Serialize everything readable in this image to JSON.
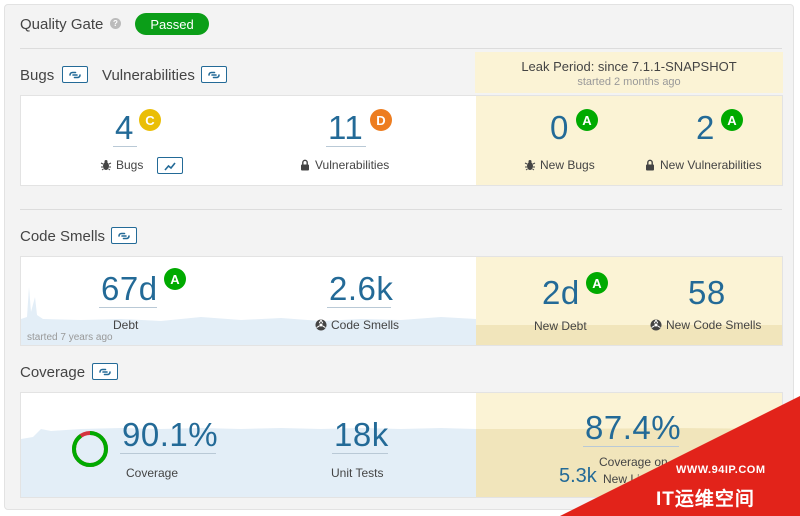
{
  "quality_gate": {
    "title": "Quality Gate",
    "help_icon": "?",
    "status": "Passed",
    "status_color": "#0b9e18"
  },
  "leak_period": {
    "title": "Leak Period: since 7.1.1-SNAPSHOT",
    "started": "started 2 months ago"
  },
  "sections": {
    "bugs": "Bugs",
    "vulnerabilities": "Vulnerabilities",
    "code_smells": "Code Smells",
    "coverage": "Coverage"
  },
  "bugs_vulns": {
    "bugs": {
      "value": "4",
      "rating": "C",
      "label": "Bugs"
    },
    "vulnerabilities": {
      "value": "11",
      "rating": "D",
      "label": "Vulnerabilities"
    },
    "new_bugs": {
      "value": "0",
      "rating": "A",
      "label": "New Bugs"
    },
    "new_vulnerabilities": {
      "value": "2",
      "rating": "A",
      "label": "New Vulnerabilities"
    }
  },
  "code_smells": {
    "debt": {
      "value": "67d",
      "rating": "A",
      "label": "Debt",
      "started": "started 7 years ago"
    },
    "smells": {
      "value": "2.6k",
      "label": "Code Smells"
    },
    "new_debt": {
      "value": "2d",
      "rating": "A",
      "label": "New Debt"
    },
    "new_smells": {
      "value": "58",
      "label": "New Code Smells"
    }
  },
  "coverage": {
    "coverage": {
      "value": "90.1%",
      "label": "Coverage",
      "percent": 90.1
    },
    "unit_tests": {
      "value": "18k",
      "label": "Unit Tests"
    },
    "new_coverage": {
      "value": "87.4%",
      "label": "Coverage on"
    },
    "new_lines": {
      "value": "5.3k",
      "label": "New Lines"
    }
  },
  "watermark": {
    "url": "WWW.94IP.COM",
    "brand": "IT运维空间"
  },
  "colors": {
    "accent": "#236a97",
    "rating_A": "#00aa00",
    "rating_C": "#eabe06",
    "rating_D": "#ed7d20",
    "leak_bg": "#fbf3d5",
    "coverage_green": "#00aa00",
    "coverage_red": "#d4333f"
  }
}
